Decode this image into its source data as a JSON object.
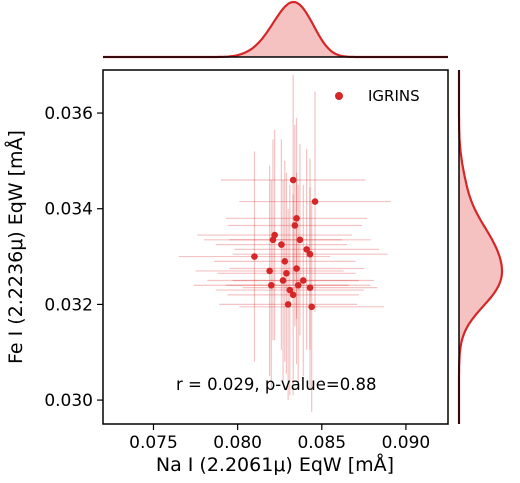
{
  "chart_data": {
    "type": "scatter",
    "xlabel": "Na I (2.2061μ) EqW [mÅ]",
    "ylabel": "Fe I (2.2236μ) EqW [mÅ]",
    "xlim": [
      0.072,
      0.0925
    ],
    "ylim": [
      0.0295,
      0.0369
    ],
    "x_ticks": [
      0.075,
      0.08,
      0.085,
      0.09
    ],
    "y_ticks": [
      0.03,
      0.032,
      0.034,
      0.036
    ],
    "x_tick_labels": [
      "0.075",
      "0.080",
      "0.085",
      "0.090"
    ],
    "y_tick_labels": [
      "0.030",
      "0.032",
      "0.034",
      "0.036"
    ],
    "grid": false,
    "legend_position": "top-right",
    "annotation": "r = 0.029, p-value=0.88",
    "series": [
      {
        "name": "IGRINS",
        "color": "#d62728",
        "points": [
          {
            "x": 0.0833,
            "y": 0.0346,
            "xerr": 0.0043,
            "yerr": 0.0022
          },
          {
            "x": 0.0846,
            "y": 0.03415,
            "xerr": 0.0045,
            "yerr": 0.0023
          },
          {
            "x": 0.0835,
            "y": 0.0338,
            "xerr": 0.0042,
            "yerr": 0.0021
          },
          {
            "x": 0.0834,
            "y": 0.03365,
            "xerr": 0.004,
            "yerr": 0.0021
          },
          {
            "x": 0.0822,
            "y": 0.03345,
            "xerr": 0.0046,
            "yerr": 0.0022
          },
          {
            "x": 0.0821,
            "y": 0.03335,
            "xerr": 0.0041,
            "yerr": 0.0021
          },
          {
            "x": 0.0837,
            "y": 0.03335,
            "xerr": 0.0042,
            "yerr": 0.002
          },
          {
            "x": 0.0826,
            "y": 0.03325,
            "xerr": 0.0039,
            "yerr": 0.0022
          },
          {
            "x": 0.0841,
            "y": 0.03315,
            "xerr": 0.0043,
            "yerr": 0.0021
          },
          {
            "x": 0.0843,
            "y": 0.03305,
            "xerr": 0.0046,
            "yerr": 0.002
          },
          {
            "x": 0.081,
            "y": 0.033,
            "xerr": 0.0045,
            "yerr": 0.0022
          },
          {
            "x": 0.0828,
            "y": 0.0329,
            "xerr": 0.0042,
            "yerr": 0.0021
          },
          {
            "x": 0.0835,
            "y": 0.03275,
            "xerr": 0.004,
            "yerr": 0.002
          },
          {
            "x": 0.0819,
            "y": 0.0327,
            "xerr": 0.0044,
            "yerr": 0.0022
          },
          {
            "x": 0.0829,
            "y": 0.03265,
            "xerr": 0.0041,
            "yerr": 0.0021
          },
          {
            "x": 0.0827,
            "y": 0.0325,
            "xerr": 0.0045,
            "yerr": 0.0021
          },
          {
            "x": 0.0839,
            "y": 0.0325,
            "xerr": 0.0042,
            "yerr": 0.002
          },
          {
            "x": 0.082,
            "y": 0.0324,
            "xerr": 0.0046,
            "yerr": 0.0022
          },
          {
            "x": 0.0836,
            "y": 0.0324,
            "xerr": 0.0043,
            "yerr": 0.0021
          },
          {
            "x": 0.0843,
            "y": 0.03235,
            "xerr": 0.004,
            "yerr": 0.0021
          },
          {
            "x": 0.0831,
            "y": 0.0323,
            "xerr": 0.0044,
            "yerr": 0.0022
          },
          {
            "x": 0.0833,
            "y": 0.0322,
            "xerr": 0.0039,
            "yerr": 0.0021
          },
          {
            "x": 0.083,
            "y": 0.032,
            "xerr": 0.0041,
            "yerr": 0.002
          },
          {
            "x": 0.0844,
            "y": 0.03195,
            "xerr": 0.0043,
            "yerr": 0.0022
          }
        ]
      }
    ]
  }
}
